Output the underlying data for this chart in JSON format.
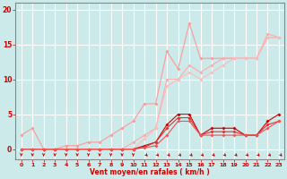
{
  "xlabel": "Vent moyen/en rafales ( km/h )",
  "bg_color": "#cceaea",
  "grid_color": "#ffffff",
  "xlim": [
    -0.5,
    23.5
  ],
  "ylim": [
    -1.5,
    21
  ],
  "yticks": [
    0,
    5,
    10,
    15,
    20
  ],
  "xticks": [
    0,
    1,
    2,
    3,
    4,
    5,
    6,
    7,
    8,
    9,
    10,
    11,
    12,
    13,
    14,
    15,
    16,
    17,
    18,
    19,
    20,
    21,
    22,
    23
  ],
  "line_light_pink": {
    "x": [
      0,
      1,
      2,
      3,
      4,
      5,
      6,
      7,
      8,
      9,
      10,
      11,
      12,
      13,
      14,
      15,
      16,
      17,
      18,
      19,
      20,
      21,
      22,
      23
    ],
    "y": [
      2,
      3,
      0,
      0,
      0.5,
      0.5,
      1,
      1,
      2,
      3,
      4,
      6.5,
      6.5,
      14,
      11.5,
      18,
      13,
      13,
      13,
      13,
      13,
      13,
      16,
      16
    ]
  },
  "line_light_pink2": {
    "x": [
      0,
      1,
      2,
      3,
      4,
      5,
      6,
      7,
      8,
      9,
      10,
      11,
      12,
      13,
      14,
      15,
      16,
      17,
      18,
      19,
      20,
      21,
      22,
      23
    ],
    "y": [
      0,
      0,
      0,
      0,
      0,
      0,
      0,
      0,
      0,
      0,
      1,
      2,
      3,
      10,
      10,
      12,
      11,
      12,
      13,
      13,
      13,
      13,
      16.5,
      16
    ]
  },
  "line_light_pink3": {
    "x": [
      0,
      1,
      2,
      3,
      4,
      5,
      6,
      7,
      8,
      9,
      10,
      11,
      12,
      13,
      14,
      15,
      16,
      17,
      18,
      19,
      20,
      21,
      22,
      23
    ],
    "y": [
      0,
      0,
      0,
      0,
      0,
      0,
      0,
      0,
      0,
      0,
      0,
      1.5,
      3,
      9,
      10,
      11,
      10,
      11,
      12,
      13,
      13,
      13,
      16,
      16
    ]
  },
  "line_dark_red": {
    "x": [
      0,
      1,
      2,
      3,
      4,
      5,
      6,
      7,
      8,
      9,
      10,
      11,
      12,
      13,
      14,
      15,
      16,
      17,
      18,
      19,
      20,
      21,
      22,
      23
    ],
    "y": [
      0,
      0,
      0,
      0,
      0,
      0,
      0,
      0,
      0,
      0,
      0,
      0.5,
      1,
      3.5,
      5,
      5,
      2,
      3,
      3,
      3,
      2,
      2,
      4,
      5
    ]
  },
  "line_dark_red2": {
    "x": [
      0,
      1,
      2,
      3,
      4,
      5,
      6,
      7,
      8,
      9,
      10,
      11,
      12,
      13,
      14,
      15,
      16,
      17,
      18,
      19,
      20,
      21,
      22,
      23
    ],
    "y": [
      0,
      0,
      0,
      0,
      0,
      0,
      0,
      0,
      0,
      0,
      0,
      0.3,
      1,
      3,
      4.5,
      4.5,
      2,
      2.5,
      2.5,
      2.5,
      2,
      2,
      3.5,
      4
    ]
  },
  "line_dark_red3": {
    "x": [
      0,
      1,
      2,
      3,
      4,
      5,
      6,
      7,
      8,
      9,
      10,
      11,
      12,
      13,
      14,
      15,
      16,
      17,
      18,
      19,
      20,
      21,
      22,
      23
    ],
    "y": [
      0,
      0,
      0,
      0,
      0,
      0,
      0,
      0,
      0,
      0,
      0,
      0.2,
      0.5,
      2,
      4,
      4,
      2,
      2,
      2,
      2,
      2,
      2,
      3,
      4
    ]
  },
  "pink1": "#ff9999",
  "pink2": "#ffaaaa",
  "pink3": "#ffbbbb",
  "red1": "#cc0000",
  "red2": "#dd3333",
  "red3": "#ee5555",
  "text_color": "#cc0000",
  "axis_color": "#888888"
}
